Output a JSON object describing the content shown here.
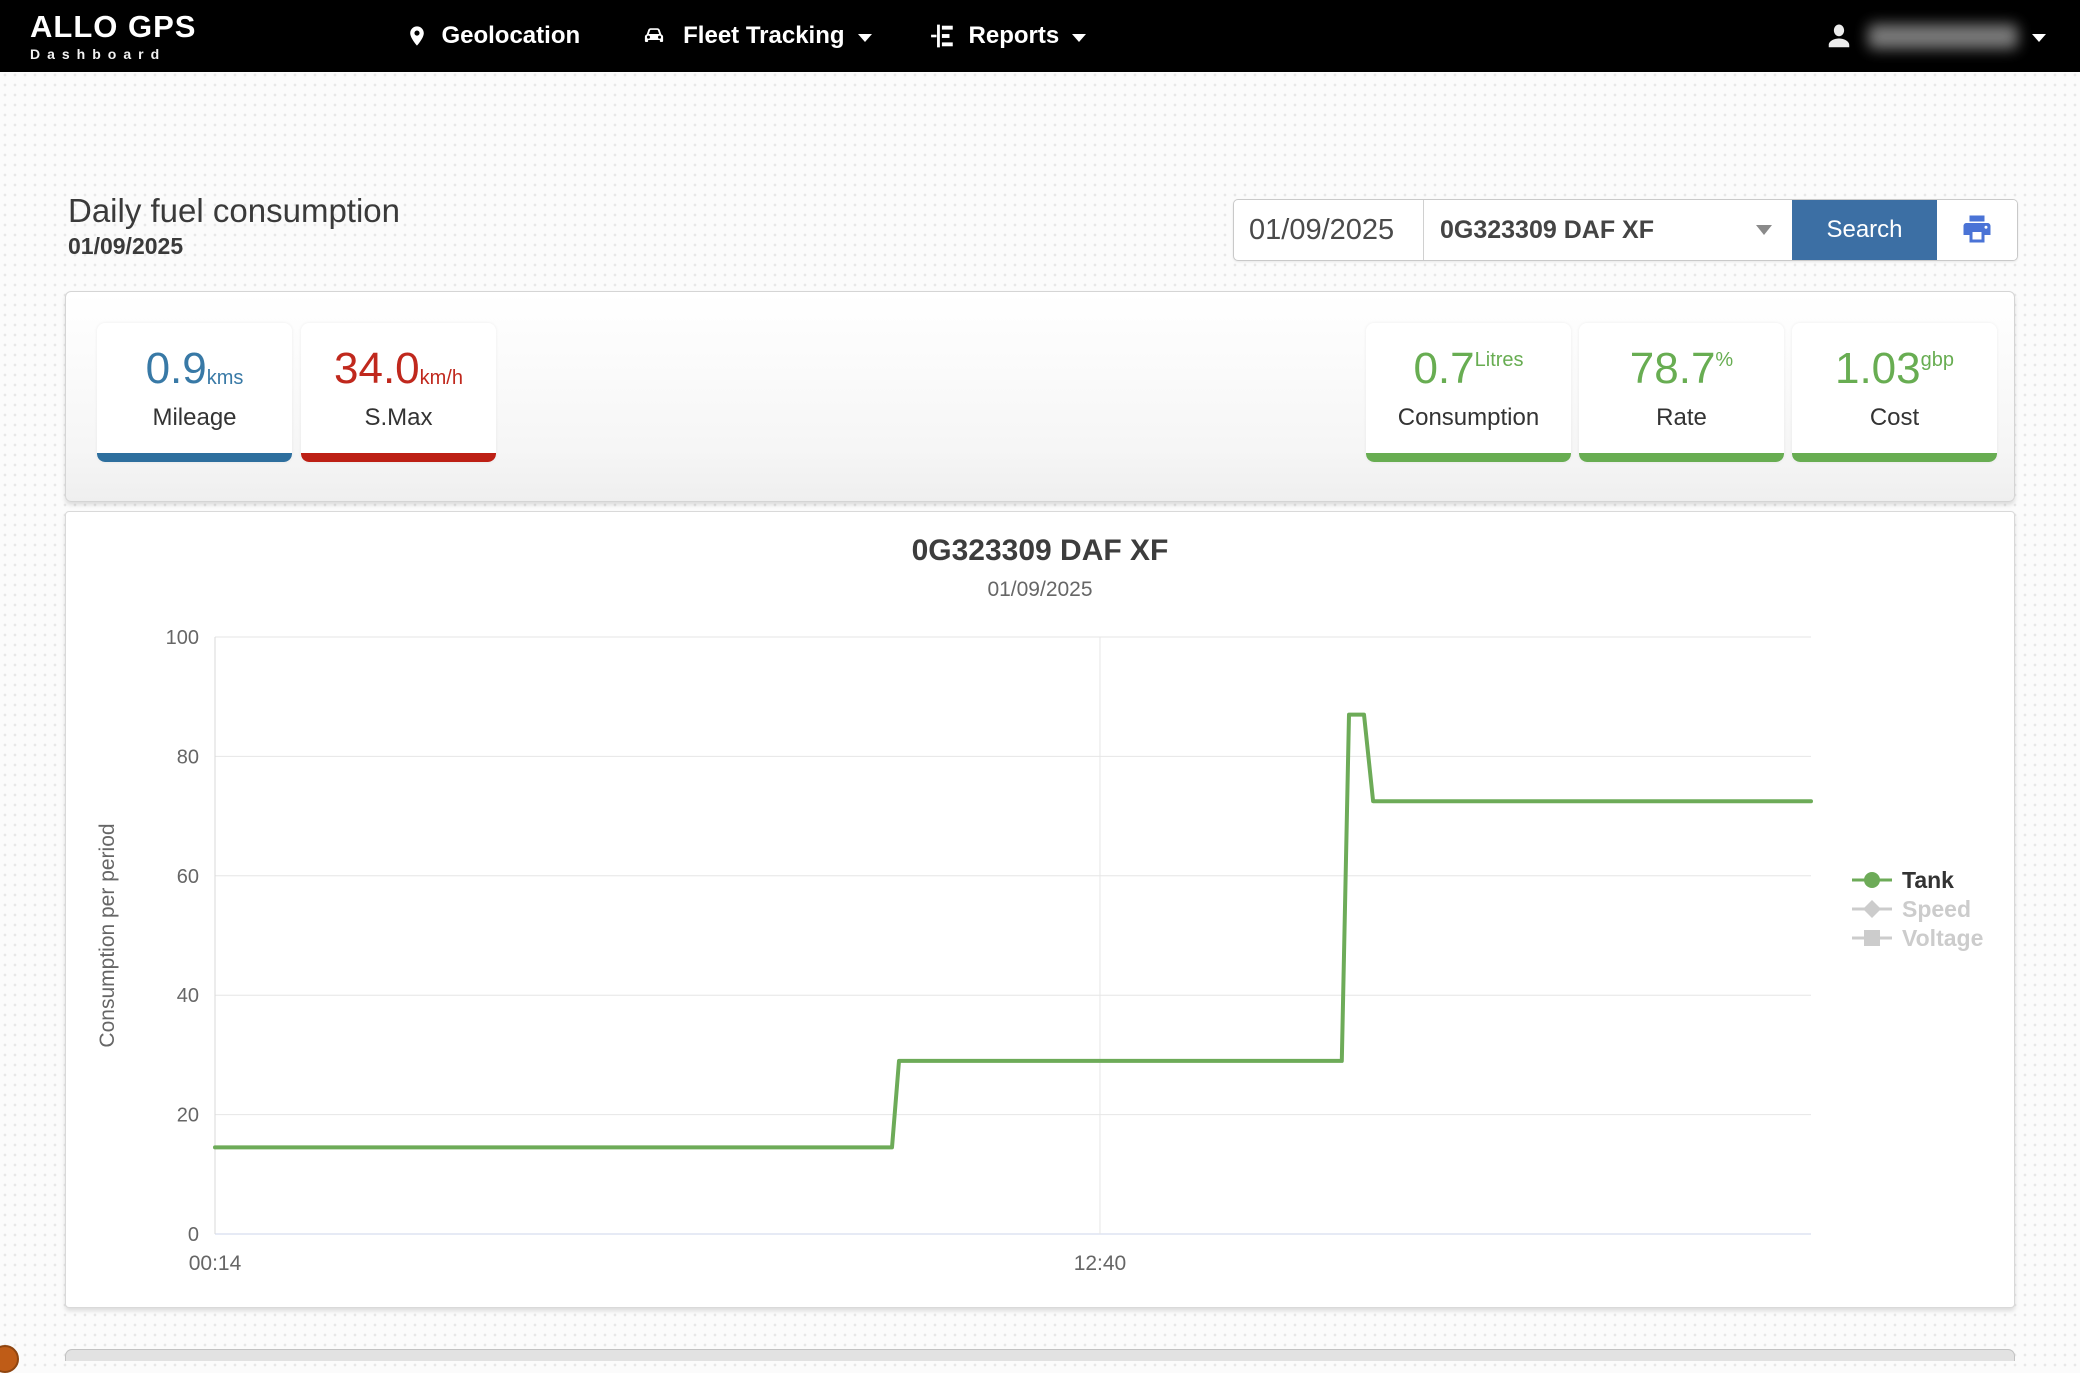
{
  "nav": {
    "brand": "ALLO GPS",
    "brand_sub": "Dashboard",
    "items": [
      {
        "label": "Geolocation",
        "icon": "location-pin",
        "caret": false
      },
      {
        "label": "Fleet Tracking",
        "icon": "car",
        "caret": true
      },
      {
        "label": "Reports",
        "icon": "report",
        "caret": true
      }
    ],
    "user": {
      "name": "",
      "blurred": true
    }
  },
  "page": {
    "title": "Daily fuel consumption",
    "subtitle": "01/09/2025"
  },
  "toolbar": {
    "date_value": "01/09/2025",
    "vehicle_value": "0G323309 DAF XF",
    "search_label": "Search"
  },
  "stats": {
    "left": [
      {
        "value": "0.9",
        "unit": "kms",
        "unit_pos": "sub",
        "label": "Mileage",
        "color": "#3879a6",
        "bar": "#2e6f9e"
      },
      {
        "value": "34.0",
        "unit": "km/h",
        "unit_pos": "sub",
        "label": "S.Max",
        "color": "#c0281d",
        "bar": "#bd2015"
      }
    ],
    "right": [
      {
        "value": "0.7",
        "unit": "Litres",
        "unit_pos": "sup",
        "label": "Consumption",
        "color": "#68ad52",
        "bar": "#68ad52"
      },
      {
        "value": "78.7",
        "unit": "%",
        "unit_pos": "sup",
        "label": "Rate",
        "color": "#68ad52",
        "bar": "#68ad52"
      },
      {
        "value": "1.03",
        "unit": "gbp",
        "unit_pos": "sup",
        "label": "Cost",
        "color": "#68ad52",
        "bar": "#68ad52"
      }
    ]
  },
  "chart_data": {
    "type": "line",
    "title": "0G323309 DAF XF",
    "subtitle": "01/09/2025",
    "ylabel": "Consumption per period",
    "ylim": [
      0,
      100
    ],
    "yticks": [
      0,
      20,
      40,
      60,
      80,
      100
    ],
    "xticks": [
      {
        "label": "00:14",
        "frac": 0.0
      },
      {
        "label": "12:40",
        "frac": 0.5545
      }
    ],
    "grid": true,
    "legend_position": "right",
    "series": [
      {
        "name": "Tank",
        "color": "#6dab58",
        "visible": true,
        "marker": "circle",
        "points": [
          [
            0,
            14.5
          ],
          [
            0.4242,
            14.5
          ],
          [
            0.4286,
            29
          ],
          [
            0.706,
            29
          ],
          [
            0.7105,
            87
          ],
          [
            0.7199,
            87
          ],
          [
            0.7256,
            72.5
          ],
          [
            1,
            72.5
          ]
        ]
      },
      {
        "name": "Speed",
        "color": "#cccccc",
        "visible": false,
        "marker": "diamond",
        "points": []
      },
      {
        "name": "Voltage",
        "color": "#cccccc",
        "visible": false,
        "marker": "square",
        "points": []
      }
    ]
  }
}
